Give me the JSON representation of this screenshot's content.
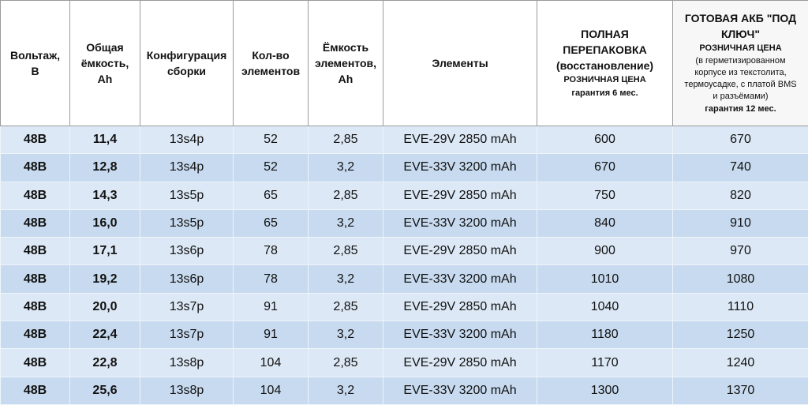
{
  "table": {
    "headers": [
      [
        "Вольтаж,",
        "В"
      ],
      [
        "Общая",
        "ёмкость,",
        "Ah"
      ],
      [
        "Конфигурация",
        "сборки"
      ],
      [
        "Кол-во",
        "элементов"
      ],
      [
        "Ёмкость",
        "элементов,",
        "Ah"
      ],
      [
        "Элементы"
      ],
      [
        "ПОЛНАЯ ПЕРЕПАКОВКА",
        "(восстановление)",
        "РОЗНИЧНАЯ ЦЕНА",
        "гарантия 6 мес."
      ],
      [
        "ГОТОВАЯ АКБ \"ПОД",
        "КЛЮЧ\"",
        "РОЗНИЧНАЯ ЦЕНА",
        "(в герметизированном",
        "корпусе из текстолита,",
        "термоусадке, с платой BMS",
        "и разъёмами)",
        "гарантия 12 мес."
      ]
    ],
    "rows": [
      [
        "48В",
        "11,4",
        "13s4p",
        "52",
        "2,85",
        "EVE-29V 2850 mAh",
        "600",
        "670"
      ],
      [
        "48В",
        "12,8",
        "13s4p",
        "52",
        "3,2",
        "EVE-33V 3200 mAh",
        "670",
        "740"
      ],
      [
        "48В",
        "14,3",
        "13s5p",
        "65",
        "2,85",
        "EVE-29V 2850 mAh",
        "750",
        "820"
      ],
      [
        "48В",
        "16,0",
        "13s5p",
        "65",
        "3,2",
        "EVE-33V 3200 mAh",
        "840",
        "910"
      ],
      [
        "48В",
        "17,1",
        "13s6p",
        "78",
        "2,85",
        "EVE-29V 2850 mAh",
        "900",
        "970"
      ],
      [
        "48В",
        "19,2",
        "13s6p",
        "78",
        "3,2",
        "EVE-33V 3200 mAh",
        "1010",
        "1080"
      ],
      [
        "48В",
        "20,0",
        "13s7p",
        "91",
        "2,85",
        "EVE-29V 2850 mAh",
        "1040",
        "1110"
      ],
      [
        "48В",
        "22,4",
        "13s7p",
        "91",
        "3,2",
        "EVE-33V 3200 mAh",
        "1180",
        "1250"
      ],
      [
        "48В",
        "22,8",
        "13s8p",
        "104",
        "2,85",
        "EVE-29V 2850 mAh",
        "1170",
        "1240"
      ],
      [
        "48В",
        "25,6",
        "13s8p",
        "104",
        "3,2",
        "EVE-33V 3200 mAh",
        "1300",
        "1370"
      ]
    ]
  }
}
